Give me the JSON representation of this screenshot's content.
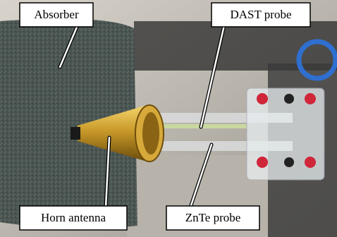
{
  "labels": {
    "absorber": "Absorber",
    "dast_probe": "DAST probe",
    "horn_antenna": "Horn antenna",
    "znte_probe": "ZnTe probe"
  }
}
